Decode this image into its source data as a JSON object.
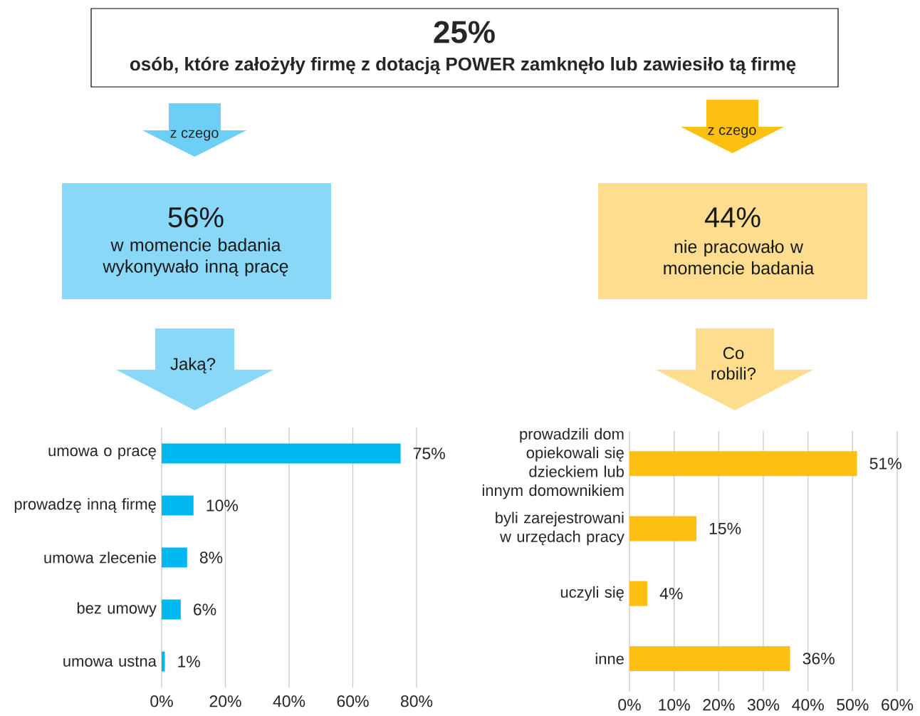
{
  "chart_data": [
    {
      "type": "other",
      "title": "25%",
      "subtitle": "osób, które założyły firmę z dotacją POWER zamknęło lub zawiesiło tą firmę"
    },
    {
      "type": "bar",
      "orientation": "horizontal",
      "title": "56%",
      "subtitle": "w momencie badania wykonywało inną pracę",
      "annotations": [
        "z czego",
        "Jaką?"
      ],
      "categories": [
        "umowa o pracę",
        "prowadzę inną firmę",
        "umowa zlecenie",
        "bez umowy",
        "umowa ustna"
      ],
      "values": [
        75,
        10,
        8,
        6,
        1
      ],
      "value_labels": [
        "75%",
        "10%",
        "8%",
        "6%",
        "1%"
      ],
      "color": "#00b8f0",
      "xlim": [
        0,
        80
      ],
      "xticks": [
        {
          "value": 0,
          "label": "0%"
        },
        {
          "value": 20,
          "label": "20%"
        },
        {
          "value": 40,
          "label": "40%"
        },
        {
          "value": 60,
          "label": "60%"
        },
        {
          "value": 80,
          "label": "80%"
        }
      ],
      "grid": "x"
    },
    {
      "type": "bar",
      "orientation": "horizontal",
      "title": "44%",
      "subtitle": "nie pracowało w momencie badania",
      "annotations": [
        "z czego",
        "Co robili?"
      ],
      "categories": [
        "prowadzili dom opiekowali się dzieckiem lub innym domownikiem",
        "byli zarejestrowani w urzędach pracy",
        "uczyli się",
        "inne"
      ],
      "values": [
        51,
        15,
        4,
        36
      ],
      "value_labels": [
        "51%",
        "15%",
        "4%",
        "36%"
      ],
      "color": "#fdc010",
      "xlim": [
        0,
        60
      ],
      "xticks": [
        {
          "value": 0,
          "label": "0%"
        },
        {
          "value": 10,
          "label": "10%"
        },
        {
          "value": 20,
          "label": "20%"
        },
        {
          "value": 30,
          "label": "30%"
        },
        {
          "value": 40,
          "label": "40%"
        },
        {
          "value": 50,
          "label": "50%"
        },
        {
          "value": 60,
          "label": "60%"
        }
      ],
      "grid": "x"
    }
  ]
}
